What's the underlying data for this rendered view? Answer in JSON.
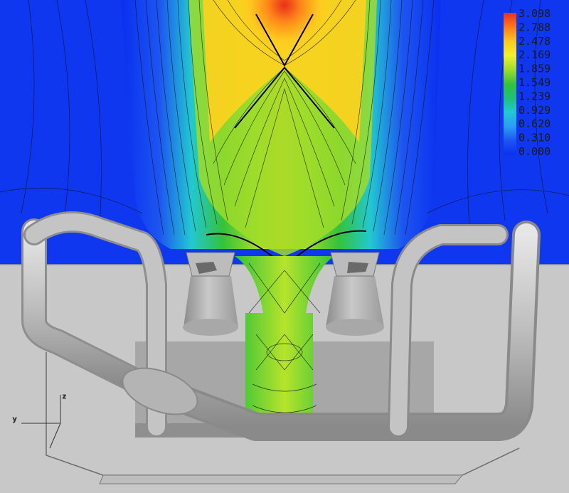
{
  "colors": {
    "background_flow": "#0a2ff0",
    "ground": "#c8c8c8",
    "ground_edge": "#9a9a9a",
    "pipe": "#bdbdbd",
    "pipe_shadow": "#8e8e8e",
    "contour_line": "#111111"
  },
  "legend": {
    "ticks": [
      "3.098",
      "2.788",
      "2.478",
      "2.169",
      "1.859",
      "1.549",
      "1.239",
      "0.929",
      "0.620",
      "0.310",
      "0.000"
    ],
    "gradient": [
      "#e8301a",
      "#ff7a1a",
      "#ffc81e",
      "#f2f02a",
      "#9edc2a",
      "#35c23a",
      "#1fbf7a",
      "#22c8d2",
      "#2a9cf5",
      "#1d55f0",
      "#0a2ff0"
    ]
  },
  "axes_triad": {
    "z_label": "z",
    "y_label": "y"
  }
}
